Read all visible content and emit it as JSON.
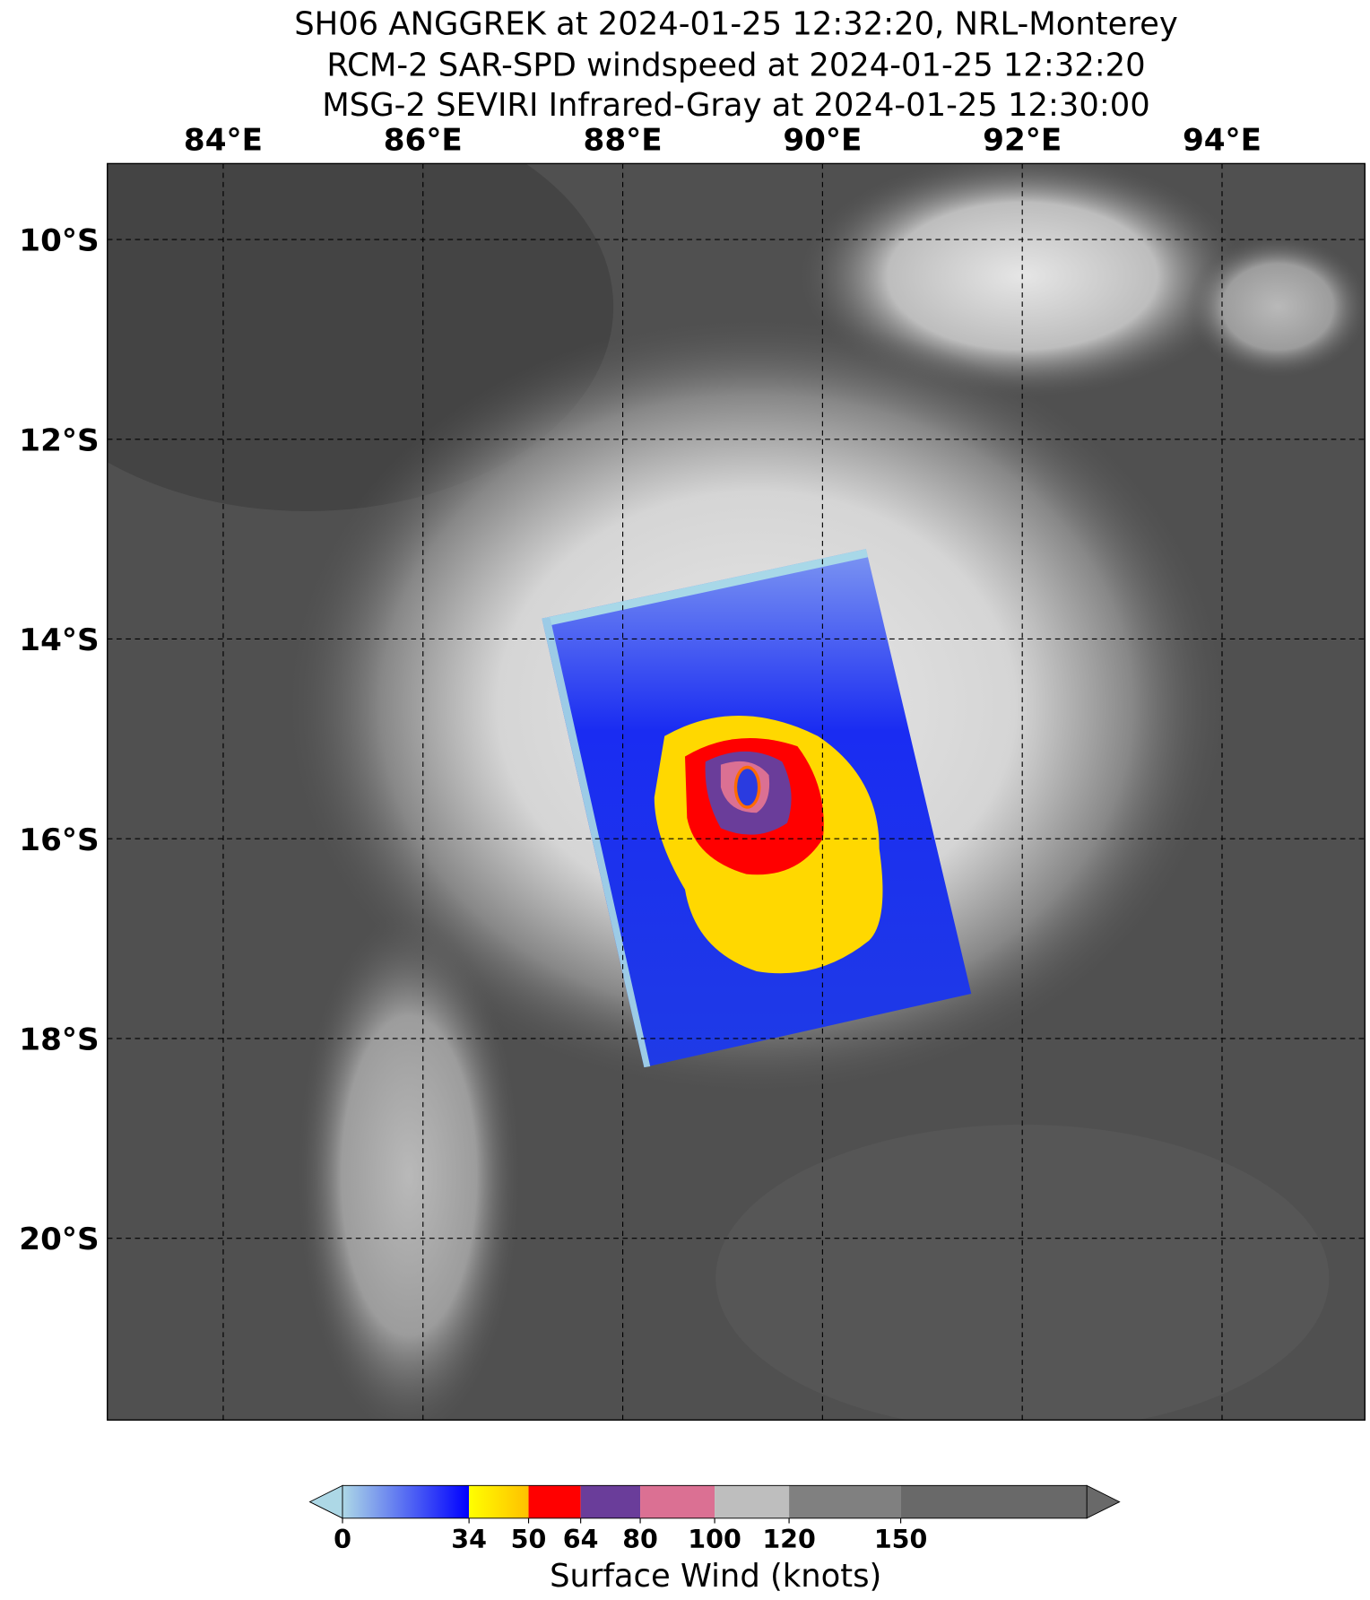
{
  "map": {
    "title": [
      "SH06 ANGGREK at 2024-01-25 12:32:20, NRL-Monterey",
      "RCM-2 SAR-SPD windspeed at 2024-01-25 12:32:20",
      "MSG-2 SEVIRI Infrared-Gray at 2024-01-25 12:30:00"
    ],
    "lonlim": [
      82.84,
      95.43
    ],
    "latlim": [
      -21.82,
      -9.24
    ],
    "lon_ticks": [
      {
        "value": 84,
        "label": "84°E"
      },
      {
        "value": 86,
        "label": "86°E"
      },
      {
        "value": 88,
        "label": "88°E"
      },
      {
        "value": 90,
        "label": "90°E"
      },
      {
        "value": 92,
        "label": "92°E"
      },
      {
        "value": 94,
        "label": "94°E"
      }
    ],
    "lat_ticks": [
      {
        "value": -10,
        "label": "10°S"
      },
      {
        "value": -12,
        "label": "12°S"
      },
      {
        "value": -14,
        "label": "14°S"
      },
      {
        "value": -16,
        "label": "16°S"
      },
      {
        "value": -18,
        "label": "18°S"
      },
      {
        "value": -20,
        "label": "20°S"
      }
    ],
    "colorbar": {
      "label": "Surface Wind (knots)",
      "lim": [
        0,
        200
      ],
      "ticks": [
        0,
        34,
        50,
        64,
        80,
        100,
        120,
        150
      ],
      "segments": [
        {
          "from": 0,
          "to": 34,
          "colors": [
            "#add8e6",
            "#0000ff"
          ]
        },
        {
          "from": 34,
          "to": 50,
          "colors": [
            "#ffff00",
            "#ffc000"
          ]
        },
        {
          "from": 50,
          "to": 64,
          "colors": [
            "#ff0000",
            "#ff0000"
          ]
        },
        {
          "from": 64,
          "to": 80,
          "colors": [
            "#6a3d9a",
            "#6a3d9a"
          ]
        },
        {
          "from": 80,
          "to": 100,
          "colors": [
            "#db7093",
            "#db7093"
          ]
        },
        {
          "from": 100,
          "to": 120,
          "colors": [
            "#bebebe",
            "#bebebe"
          ]
        },
        {
          "from": 120,
          "to": 150,
          "colors": [
            "#808080",
            "#808080"
          ]
        },
        {
          "from": 150,
          "to": 200,
          "colors": [
            "#696969",
            "#696969"
          ]
        }
      ],
      "extend_colors": [
        "#add8e6",
        "#696969"
      ]
    }
  }
}
